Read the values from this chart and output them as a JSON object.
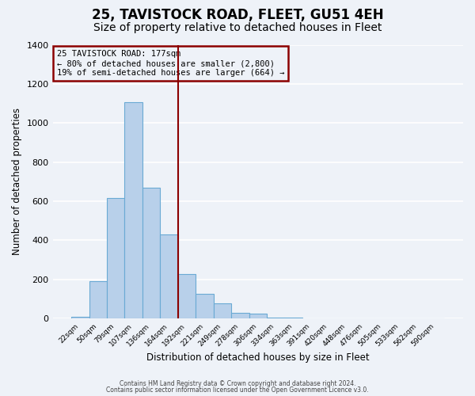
{
  "title": "25, TAVISTOCK ROAD, FLEET, GU51 4EH",
  "subtitle": "Size of property relative to detached houses in Fleet",
  "xlabel": "Distribution of detached houses by size in Fleet",
  "ylabel": "Number of detached properties",
  "bin_labels": [
    "22sqm",
    "50sqm",
    "79sqm",
    "107sqm",
    "136sqm",
    "164sqm",
    "192sqm",
    "221sqm",
    "249sqm",
    "278sqm",
    "306sqm",
    "334sqm",
    "363sqm",
    "391sqm",
    "420sqm",
    "448sqm",
    "476sqm",
    "505sqm",
    "533sqm",
    "562sqm",
    "590sqm"
  ],
  "bar_heights": [
    10,
    190,
    615,
    1105,
    670,
    430,
    225,
    125,
    75,
    30,
    25,
    5,
    3,
    0,
    0,
    0,
    0,
    0,
    0,
    0,
    0
  ],
  "bar_color": "#b8d0ea",
  "bar_edge_color": "#6aaad4",
  "vline_pos": 5.5,
  "vline_color": "#8b0000",
  "annotation_title": "25 TAVISTOCK ROAD: 177sqm",
  "annotation_line1": "← 80% of detached houses are smaller (2,800)",
  "annotation_line2": "19% of semi-detached houses are larger (664) →",
  "annotation_box_edge_color": "#8b0000",
  "ylim": [
    0,
    1400
  ],
  "yticks": [
    0,
    200,
    400,
    600,
    800,
    1000,
    1200,
    1400
  ],
  "footer1": "Contains HM Land Registry data © Crown copyright and database right 2024.",
  "footer2": "Contains public sector information licensed under the Open Government Licence v3.0.",
  "background_color": "#eef2f8",
  "grid_color": "#ffffff",
  "title_fontsize": 12,
  "subtitle_fontsize": 10
}
